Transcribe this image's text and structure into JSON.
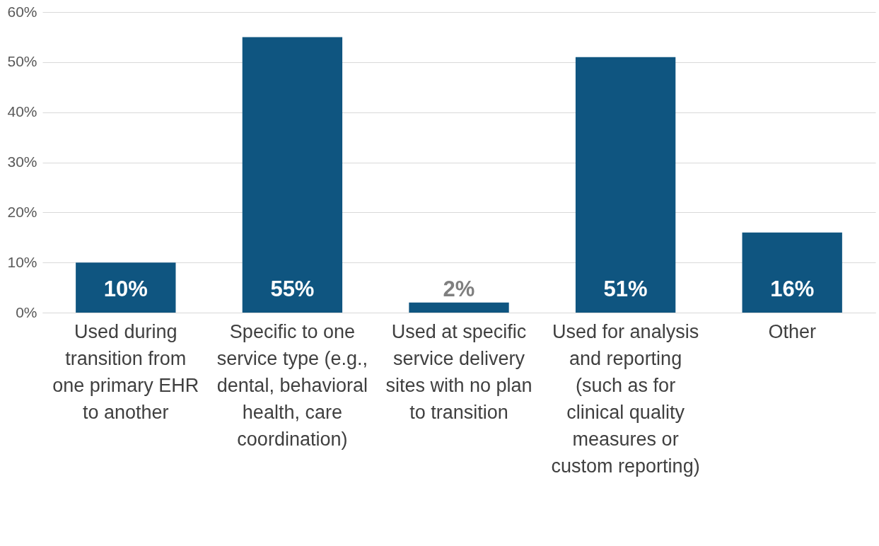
{
  "chart_data": {
    "type": "bar",
    "categories": [
      "Used during transition from one primary EHR to another",
      "Specific to one service type (e.g., dental, behavioral health, care coordination)",
      "Used at specific service delivery sites with no plan to transition",
      "Used for analysis and reporting (such as for clinical quality measures or custom reporting)",
      "Other"
    ],
    "values": [
      10,
      55,
      2,
      51,
      16
    ],
    "value_labels": [
      "10%",
      "55%",
      "2%",
      "51%",
      "16%"
    ],
    "color": "#0f5580",
    "ylim": [
      0,
      60
    ],
    "yticks": [
      {
        "value": 0,
        "label": "0%"
      },
      {
        "value": 10,
        "label": "10%"
      },
      {
        "value": 20,
        "label": "20%"
      },
      {
        "value": 30,
        "label": "30%"
      },
      {
        "value": 40,
        "label": "40%"
      },
      {
        "value": 50,
        "label": "50%"
      },
      {
        "value": 60,
        "label": "60%"
      }
    ],
    "grid": "y"
  }
}
